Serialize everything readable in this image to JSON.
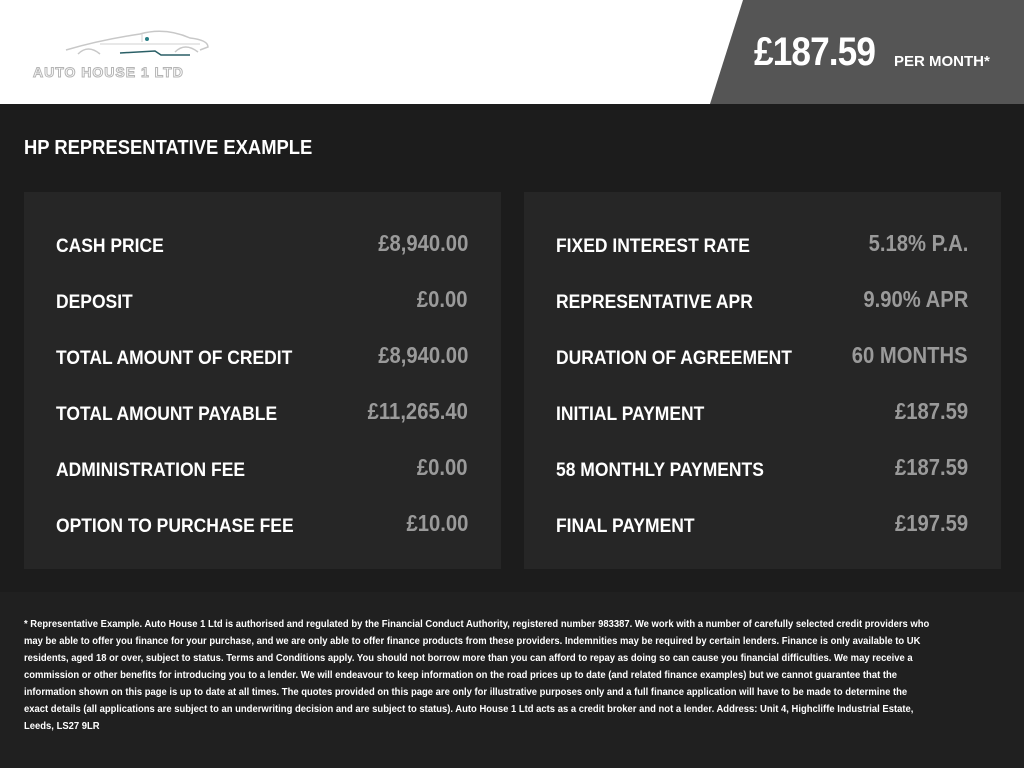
{
  "brand": {
    "logo_text": "AUTO HOUSE 1 LTD"
  },
  "price": {
    "amount": "£187.59",
    "suffix": "PER MONTH*"
  },
  "heading": "HP REPRESENTATIVE EXAMPLE",
  "left_panel": [
    {
      "label": "CASH PRICE",
      "value": "£8,940.00"
    },
    {
      "label": "DEPOSIT",
      "value": "£0.00"
    },
    {
      "label": "TOTAL AMOUNT OF CREDIT",
      "value": "£8,940.00"
    },
    {
      "label": "TOTAL AMOUNT PAYABLE",
      "value": "£11,265.40"
    },
    {
      "label": "ADMINISTRATION FEE",
      "value": "£0.00"
    },
    {
      "label": "OPTION TO PURCHASE FEE",
      "value": "£10.00"
    }
  ],
  "right_panel": [
    {
      "label": "FIXED INTEREST RATE",
      "value": "5.18% P.A."
    },
    {
      "label": "REPRESENTATIVE APR",
      "value": "9.90% APR"
    },
    {
      "label": "DURATION OF AGREEMENT",
      "value": "60 MONTHS"
    },
    {
      "label": "INITIAL PAYMENT",
      "value": "£187.59"
    },
    {
      "label": "58 MONTHLY PAYMENTS",
      "value": "£187.59"
    },
    {
      "label": "FINAL PAYMENT",
      "value": "£197.59"
    }
  ],
  "disclaimer": "* Representative Example. Auto House 1 Ltd is authorised and regulated by the Financial Conduct Authority, registered number 983387. We work with a number of carefully selected credit providers who may be able to offer you finance for your purchase, and we are only able to offer finance products from these providers. Indemnities may be required by certain lenders. Finance is only available to UK residents, aged 18 or over, subject to status. Terms and Conditions apply. You should not borrow more than you can afford to repay as doing so can cause you financial difficulties. We may receive a commission or other benefits for introducing you to a lender. We will endeavour to keep information on the road prices up to date (and related finance examples) but we cannot guarantee that the information shown on this page is up to date at all times. The quotes provided on this page are only for illustrative purposes only and a full finance application will have to be made to determine the exact details (all applications are subject to an underwriting decision and are subject to status). Auto House 1 Ltd acts as a credit broker and not a lender. Address: Unit 4, Highcliffe Industrial Estate, Leeds, LS27 9LR",
  "colors": {
    "panel": "#262626",
    "value": "#9a9a9a",
    "price_box": "#555555",
    "accent": "#2a7f86"
  }
}
